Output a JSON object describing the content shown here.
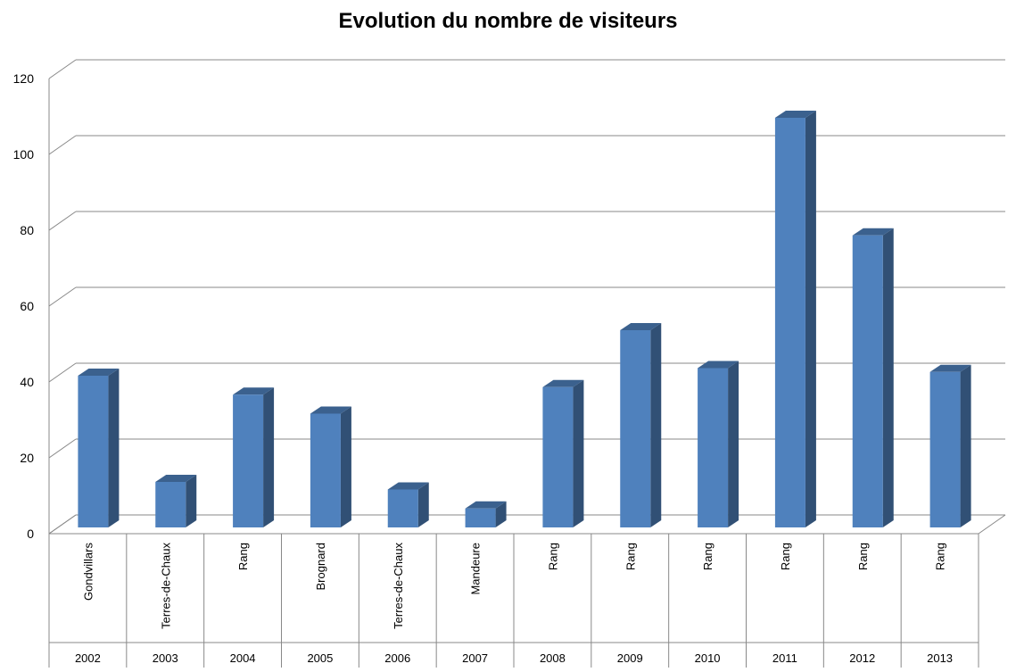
{
  "chart_data": {
    "type": "bar",
    "title": "Evolution du nombre de visiteurs",
    "xlabel": "",
    "ylabel": "",
    "ylim": [
      0,
      120
    ],
    "yticks": [
      0,
      20,
      40,
      60,
      80,
      100,
      120
    ],
    "grid": true,
    "legend": "none",
    "bar_color": "#4F81BD",
    "categories": [
      {
        "year": "2002",
        "place": "Gondvillars"
      },
      {
        "year": "2003",
        "place": "Terres-de-Chaux"
      },
      {
        "year": "2004",
        "place": "Rang"
      },
      {
        "year": "2005",
        "place": "Brognard"
      },
      {
        "year": "2006",
        "place": "Terres-de-Chaux"
      },
      {
        "year": "2007",
        "place": "Mandeure"
      },
      {
        "year": "2008",
        "place": "Rang"
      },
      {
        "year": "2009",
        "place": "Rang"
      },
      {
        "year": "2010",
        "place": "Rang"
      },
      {
        "year": "2011",
        "place": "Rang"
      },
      {
        "year": "2012",
        "place": "Rang"
      },
      {
        "year": "2013",
        "place": "Rang"
      }
    ],
    "values": [
      40,
      12,
      35,
      30,
      10,
      5,
      37,
      52,
      42,
      108,
      77,
      41
    ]
  }
}
